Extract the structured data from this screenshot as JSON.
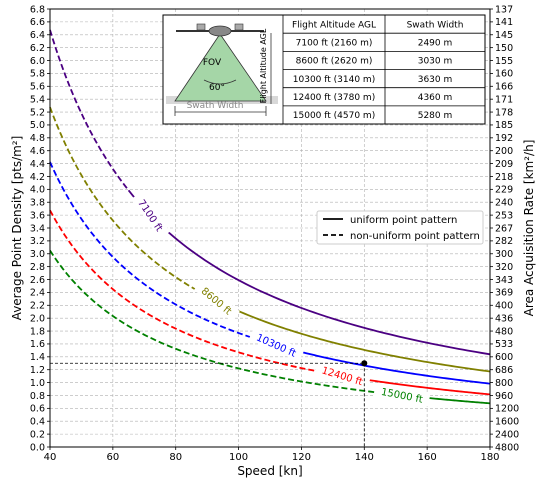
{
  "chart_data": {
    "type": "line",
    "xlabel": "Speed [kn]",
    "ylabel": "Average Point Density [pts/m²]",
    "y2label": "Area Acquisition Rate [km²/h]",
    "xlim": [
      40,
      180
    ],
    "ylim": [
      0,
      6.8
    ],
    "x_ticks": [
      "40",
      "60",
      "80",
      "100",
      "120",
      "140",
      "160",
      "180"
    ],
    "y_ticks": [
      "0.0",
      "0.2",
      "0.4",
      "0.6",
      "0.8",
      "1.0",
      "1.2",
      "1.4",
      "1.6",
      "1.8",
      "2.0",
      "2.2",
      "2.4",
      "2.6",
      "2.8",
      "3.0",
      "3.2",
      "3.4",
      "3.6",
      "3.8",
      "4.0",
      "4.2",
      "4.4",
      "4.6",
      "4.8",
      "5.0",
      "5.2",
      "5.4",
      "5.6",
      "5.8",
      "6.0",
      "6.2",
      "6.4",
      "6.6",
      "6.8"
    ],
    "y2_ticks": [
      "137",
      "141",
      "145",
      "150",
      "155",
      "160",
      "166",
      "171",
      "178",
      "185",
      "192",
      "200",
      "209",
      "218",
      "229",
      "240",
      "253",
      "267",
      "282",
      "300",
      "320",
      "343",
      "369",
      "400",
      "436",
      "480",
      "533",
      "600",
      "686",
      "800",
      "960",
      "1200",
      "1600",
      "2400",
      "4800"
    ],
    "grid": true,
    "legend": {
      "placement": "center-right",
      "entries": [
        {
          "label": "uniform point pattern",
          "style": "solid"
        },
        {
          "label": "non-uniform point pattern",
          "style": "dashed"
        }
      ]
    },
    "series": [
      {
        "name": "7100 ft",
        "color": "#4b0082",
        "k": 259,
        "transition_x": 65
      },
      {
        "name": "8600 ft",
        "color": "#808000",
        "k": 211,
        "transition_x": 92
      },
      {
        "name": "10300 ft",
        "color": "#0000ff",
        "k": 177,
        "transition_x": 110
      },
      {
        "name": "12400 ft",
        "color": "#ff0000",
        "k": 147,
        "transition_x": 131
      },
      {
        "name": "15000 ft",
        "color": "#008000",
        "k": 122,
        "transition_x": 150
      }
    ],
    "reference_point": {
      "x": 140,
      "y": 1.3
    },
    "inset": {
      "labels": {
        "fov": "FOV",
        "angle": "60°",
        "swath": "Swath Width",
        "altitude": "Flight Altitude AGL"
      },
      "table": {
        "headers": [
          "Flight Altitude AGL",
          "Swath Width"
        ],
        "rows": [
          [
            "7100 ft (2160 m)",
            "2490 m"
          ],
          [
            "8600 ft (2620 m)",
            "3030 m"
          ],
          [
            "10300 ft (3140 m)",
            "3630 m"
          ],
          [
            "12400 ft (3780 m)",
            "4360 m"
          ],
          [
            "15000 ft (4570 m)",
            "5280 m"
          ]
        ]
      }
    }
  }
}
